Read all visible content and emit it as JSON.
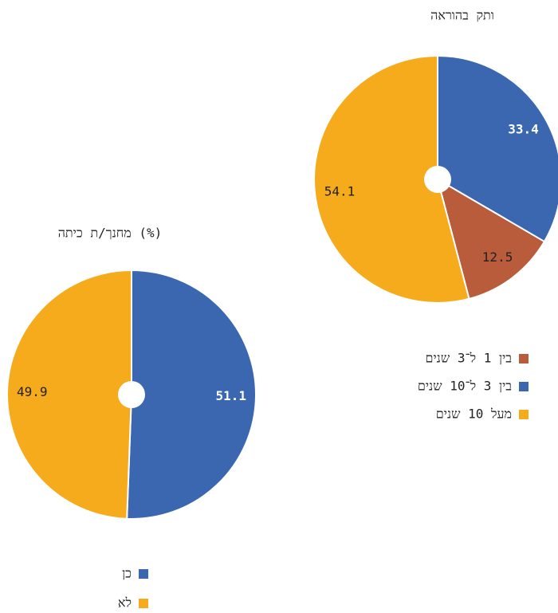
{
  "chart_data": [
    {
      "type": "pie",
      "title": "ותק בהוראה",
      "categories": [
        "בין 3 ל־10 שנים",
        "בין 1 ל־3 שנים",
        "מעל 10 שנים"
      ],
      "values": [
        33.4,
        12.5,
        54.1
      ],
      "colors": [
        "#3a67b0",
        "#b85c3c",
        "#f5ab1c"
      ]
    },
    {
      "type": "pie",
      "title": "מחנך/ת כיתה (%)",
      "categories": [
        "כן",
        "לא"
      ],
      "values": [
        51.1,
        49.9
      ],
      "colors": [
        "#3a67b0",
        "#f5ab1c"
      ]
    }
  ]
}
